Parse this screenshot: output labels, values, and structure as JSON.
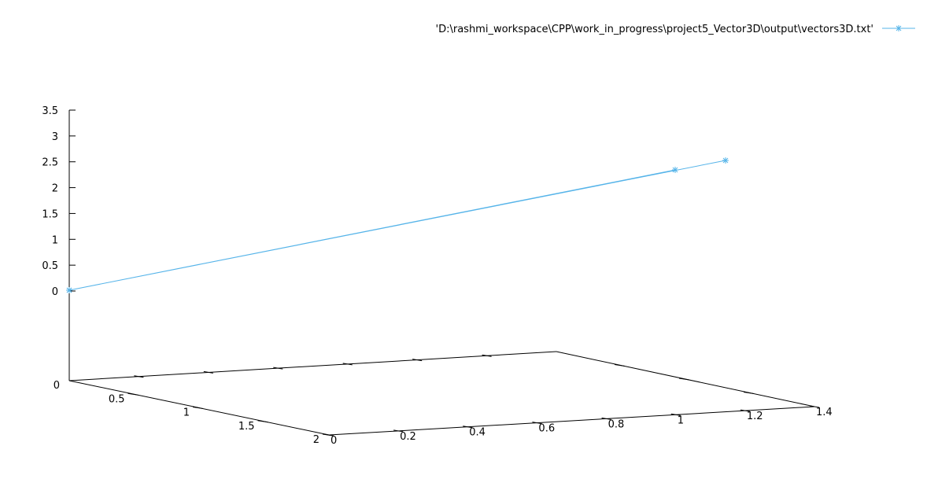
{
  "chart_data": {
    "type": "line",
    "plot_kind": "3d-splot",
    "legend": {
      "label": "'D:\\rashmi_workspace\\CPP\\work_in_progress\\project5_Vector3D\\output\\vectors3D.txt'",
      "position": "top-right"
    },
    "series_color": "#56b4e9",
    "marker": "asterisk",
    "axes": {
      "x": {
        "ticks": [
          "0",
          "0.2",
          "0.4",
          "0.6",
          "0.8",
          "1",
          "1.2",
          "1.4"
        ],
        "range": [
          0,
          1.4
        ]
      },
      "y": {
        "ticks": [
          "0",
          "0.5",
          "1",
          "1.5",
          "2"
        ],
        "range": [
          0,
          2
        ]
      },
      "z": {
        "ticks": [
          "0",
          "0.5",
          "1",
          "1.5",
          "2",
          "2.5",
          "3",
          "3.5"
        ],
        "range": [
          0,
          3.5
        ]
      }
    },
    "grid": false,
    "series": [
      {
        "points": [
          {
            "x": 0,
            "y": 0,
            "z": 0
          },
          {
            "x": 1,
            "y": 2,
            "z": 3
          },
          {
            "x": 0,
            "y": 0,
            "z": 0
          },
          {
            "x": 1.4,
            "y": 2.5,
            "z": 3.2
          }
        ]
      }
    ]
  }
}
